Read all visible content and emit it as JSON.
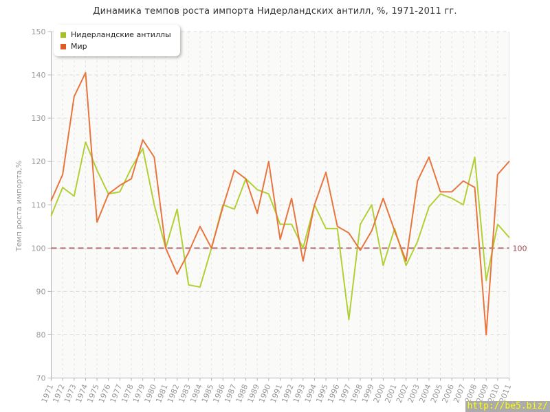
{
  "header": {
    "title": "Динамика темпов роста импорта Нидерландских антилл, %, 1971-2011 гг."
  },
  "chart_data": {
    "type": "line",
    "title": "Динамика темпов роста импорта Нидерландских антилл, %, 1971-2011 гг.",
    "xlabel": "",
    "ylabel": "Темп роста импорта,%",
    "ylim": [
      70,
      150
    ],
    "ytick_step": 10,
    "grid": true,
    "legend_position": "top-left",
    "reference_line": {
      "value": 100,
      "label": "100",
      "color": "#b06a72",
      "label_color": "#a04a50"
    },
    "x": [
      1971,
      1972,
      1973,
      1974,
      1975,
      1976,
      1977,
      1978,
      1979,
      1980,
      1981,
      1982,
      1983,
      1984,
      1985,
      1986,
      1987,
      1988,
      1989,
      1990,
      1991,
      1992,
      1993,
      1994,
      1995,
      1996,
      1997,
      1998,
      1999,
      2000,
      2001,
      2002,
      2003,
      2004,
      2005,
      2006,
      2007,
      2008,
      2009,
      2010,
      2011
    ],
    "series": [
      {
        "name": "Нидерландские антиллы",
        "color": "#b1d034",
        "swatch_color": "#a6c221",
        "values": [
          107.5,
          114,
          112,
          124.5,
          118,
          112.5,
          113,
          118.5,
          123,
          110,
          100,
          109,
          91.5,
          91,
          100,
          110,
          109,
          116,
          113.5,
          112.5,
          105.5,
          105.5,
          100,
          110,
          104.5,
          104.5,
          83.5,
          105.5,
          110,
          96,
          104.5,
          96,
          101.5,
          109.5,
          112.5,
          111.5,
          110,
          121,
          92.5,
          105.5,
          102.5
        ]
      },
      {
        "name": "Мир",
        "color": "#e8743e",
        "swatch_color": "#e05a28",
        "values": [
          111,
          117,
          135,
          140.5,
          106,
          112.5,
          114.5,
          116,
          125,
          121,
          100,
          94,
          99,
          105,
          100,
          109.5,
          118,
          116,
          108,
          120,
          102,
          111.5,
          97,
          110,
          117.5,
          105,
          103.5,
          99.5,
          104,
          111.5,
          104,
          97,
          115.5,
          121,
          113,
          113,
          115.5,
          114,
          80,
          117,
          120
        ]
      }
    ]
  },
  "watermark": {
    "text": "http://be5.biz/",
    "bg": "#ababab",
    "fg": "#ffff00"
  },
  "colors": {
    "title": "#333333",
    "axis": "#b0b0b0",
    "tick_label": "#999999",
    "grid_h": "#dcdcdc",
    "grid_v": "#e3e3e3",
    "plot_bg": "#fafaf9",
    "plot_right_border": "#e4e4e4"
  }
}
